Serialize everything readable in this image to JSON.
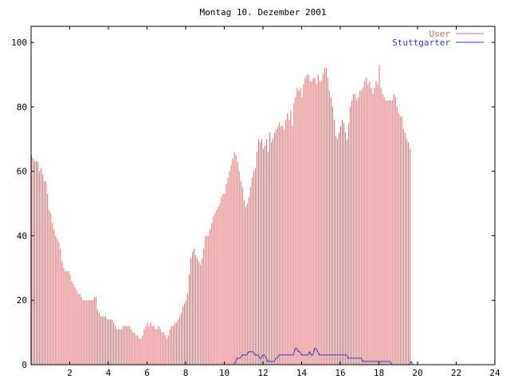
{
  "chart_data": {
    "type": "bar",
    "title": "Montag 10. Dezember 2001",
    "xlabel": "",
    "ylabel": "",
    "xlim": [
      0,
      24
    ],
    "ylim": [
      0,
      105
    ],
    "x_ticks": [
      "2",
      "4",
      "6",
      "8",
      "10",
      "12",
      "14",
      "16",
      "18",
      "20",
      "22",
      "24"
    ],
    "y_ticks": [
      "0",
      "20",
      "40",
      "60",
      "80",
      "100"
    ],
    "grid": false,
    "legend_position": "top-right",
    "interval_minutes": 5,
    "series": [
      {
        "name": "User",
        "render": "impulses",
        "color": "#e06666",
        "values": [
          65,
          64,
          63,
          63,
          63,
          60,
          61,
          59,
          57,
          57,
          53,
          48,
          47,
          44,
          42,
          40,
          39,
          38,
          36,
          32,
          30,
          29,
          29,
          29,
          28,
          26,
          25,
          24,
          23,
          22,
          22,
          21,
          20,
          20,
          20,
          20,
          20,
          20,
          20,
          21,
          21,
          17,
          16,
          15,
          15,
          15,
          15,
          14,
          14,
          14,
          14,
          13,
          12,
          11,
          11,
          11,
          11,
          12,
          12,
          12,
          12,
          12,
          11,
          10,
          10,
          9,
          9,
          8,
          8,
          9,
          11,
          12,
          13,
          12,
          13,
          12,
          12,
          11,
          11,
          12,
          11,
          10,
          10,
          9,
          8,
          9,
          11,
          12,
          12,
          13,
          13,
          14,
          15,
          16,
          18,
          19,
          20,
          22,
          28,
          33,
          35,
          36,
          34,
          33,
          32,
          31,
          33,
          36,
          40,
          40,
          40,
          42,
          44,
          46,
          47,
          48,
          49,
          50,
          52,
          53,
          53,
          56,
          58,
          60,
          62,
          64,
          66,
          65,
          63,
          60,
          57,
          55,
          51,
          49,
          50,
          52,
          55,
          58,
          60,
          61,
          66,
          70,
          69,
          70,
          67,
          68,
          70,
          66,
          72,
          69,
          70,
          72,
          73,
          74,
          75,
          74,
          74,
          73,
          76,
          78,
          76,
          79,
          74,
          81,
          83,
          86,
          85,
          86,
          83,
          87,
          89,
          90,
          90,
          88,
          88,
          89,
          89,
          87,
          90,
          88,
          88,
          90,
          92,
          92,
          89,
          85,
          83,
          80,
          76,
          71,
          70,
          72,
          74,
          76,
          75,
          72,
          70,
          75,
          80,
          82,
          84,
          84,
          82,
          83,
          85,
          85,
          86,
          88,
          89,
          87,
          88,
          86,
          84,
          86,
          88,
          87,
          93,
          86,
          84,
          83,
          82,
          82,
          82,
          82,
          82,
          84,
          83,
          80,
          78,
          77,
          77,
          73,
          72,
          70,
          69,
          67
        ]
      },
      {
        "name": "Stuttgarter",
        "render": "lines",
        "color": "#3333cc",
        "values": [
          0,
          0,
          0,
          0,
          0,
          0,
          0,
          0,
          0,
          0,
          0,
          0,
          0,
          0,
          0,
          0,
          0,
          0,
          0,
          0,
          0,
          0,
          0,
          0,
          0,
          0,
          0,
          0,
          0,
          0,
          0,
          0,
          0,
          0,
          0,
          0,
          0,
          0,
          0,
          0,
          0,
          0,
          0,
          0,
          0,
          0,
          0,
          0,
          0,
          0,
          0,
          0,
          0,
          0,
          0,
          0,
          0,
          0,
          0,
          0,
          0,
          0,
          0,
          0,
          0,
          0,
          0,
          0,
          0,
          0,
          0,
          0,
          0,
          0,
          0,
          0,
          0,
          0,
          0,
          0,
          0,
          0,
          0,
          0,
          0,
          0,
          0,
          0,
          0,
          0,
          0,
          0,
          0,
          0,
          0,
          0,
          0,
          0,
          0,
          0,
          0,
          0,
          0,
          0,
          0,
          0,
          0,
          0,
          0,
          0,
          0,
          0,
          0,
          0,
          0,
          0,
          0,
          0,
          0,
          0,
          0,
          0,
          0,
          0,
          0,
          0,
          0,
          1,
          2,
          2,
          2,
          3,
          3,
          3,
          3,
          4,
          4,
          4,
          4,
          3,
          3,
          3,
          2,
          2,
          3,
          3,
          2,
          1,
          1,
          1,
          1,
          1,
          2,
          2,
          3,
          3,
          3,
          3,
          3,
          3,
          3,
          3,
          3,
          3,
          5,
          5,
          4,
          4,
          3,
          3,
          3,
          3,
          3,
          4,
          3,
          3,
          5,
          5,
          4,
          3,
          3,
          3,
          3,
          3,
          3,
          3,
          3,
          3,
          3,
          3,
          3,
          3,
          3,
          3,
          3,
          3,
          3,
          2,
          2,
          2,
          2,
          2,
          2,
          2,
          2,
          2,
          1,
          1,
          1,
          1,
          1,
          1,
          1,
          1,
          1,
          1,
          1,
          1,
          1,
          1,
          1,
          1,
          1,
          1,
          0,
          0,
          0,
          0,
          0,
          0,
          0,
          0,
          0,
          0,
          0,
          0,
          1,
          0,
          0,
          0,
          0,
          0,
          0,
          0,
          0,
          0,
          0,
          0,
          0,
          0,
          0,
          0,
          0
        ]
      }
    ]
  }
}
